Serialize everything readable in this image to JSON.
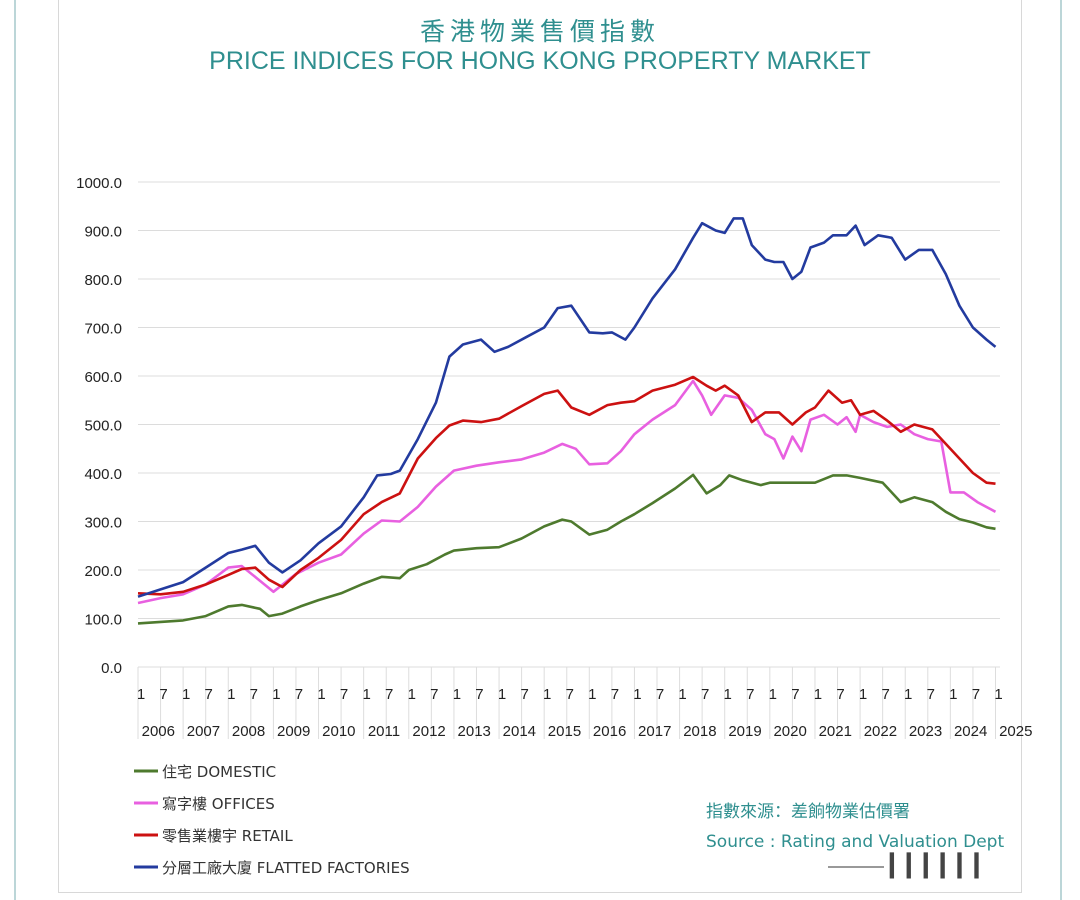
{
  "title_cn": "香港物業售價指數",
  "title_en": "PRICE INDICES FOR HONG KONG PROPERTY MARKET",
  "source": {
    "cn": "指數來源：差餉物業估價署",
    "en": "Source : Rating and Valuation Dept"
  },
  "watermark": "▎▎▎▎▎▎",
  "chart_data": {
    "type": "line",
    "title": "PRICE INDICES FOR HONG KONG PROPERTY MARKET",
    "ylim": [
      0,
      1000
    ],
    "yticks": [
      "0.0",
      "100.0",
      "200.0",
      "300.0",
      "400.0",
      "500.0",
      "600.0",
      "700.0",
      "800.0",
      "900.0",
      "1000.0"
    ],
    "xlim": [
      2006.0,
      2025.1
    ],
    "month_ticks": [
      "1",
      "7",
      "1",
      "7",
      "1",
      "7",
      "1",
      "7",
      "1",
      "7",
      "1",
      "7",
      "1",
      "7",
      "1",
      "7",
      "1",
      "7",
      "1",
      "7",
      "1",
      "7",
      "1",
      "7",
      "1",
      "7",
      "1",
      "7",
      "1",
      "7",
      "1",
      "7",
      "1",
      "7",
      "1",
      "7",
      "1",
      "7",
      "1"
    ],
    "year_labels": [
      "2006",
      "2007",
      "2008",
      "2009",
      "2010",
      "2011",
      "2012",
      "2013",
      "2014",
      "2015",
      "2016",
      "2017",
      "2018",
      "2019",
      "2020",
      "2021",
      "2022",
      "2023",
      "2024",
      "2025"
    ],
    "grid": true,
    "legend_position": "bottom-left",
    "series": [
      {
        "name": "住宅 DOMESTIC",
        "color": "#4e7a2e",
        "x": [
          2006.0,
          2006.5,
          2007.0,
          2007.5,
          2008.0,
          2008.3,
          2008.7,
          2008.9,
          2009.2,
          2009.6,
          2010.0,
          2010.5,
          2011.0,
          2011.4,
          2011.8,
          2012.0,
          2012.4,
          2012.8,
          2013.0,
          2013.5,
          2014.0,
          2014.5,
          2015.0,
          2015.4,
          2015.6,
          2016.0,
          2016.4,
          2016.7,
          2017.0,
          2017.4,
          2017.9,
          2018.3,
          2018.6,
          2018.9,
          2019.1,
          2019.4,
          2019.8,
          2020.0,
          2020.5,
          2021.0,
          2021.4,
          2021.7,
          2022.0,
          2022.5,
          2022.9,
          2023.2,
          2023.6,
          2023.9,
          2024.2,
          2024.5,
          2024.8,
          2025.0
        ],
        "values": [
          90,
          93,
          96,
          105,
          125,
          128,
          120,
          105,
          110,
          125,
          138,
          152,
          172,
          186,
          183,
          200,
          212,
          232,
          240,
          245,
          247,
          265,
          290,
          304,
          300,
          273,
          283,
          300,
          315,
          338,
          368,
          396,
          358,
          375,
          395,
          385,
          375,
          380,
          380,
          380,
          395,
          395,
          390,
          380,
          340,
          350,
          340,
          320,
          305,
          298,
          288,
          285
        ]
      },
      {
        "name": "寫字樓 OFFICES",
        "color": "#e860e0",
        "x": [
          2006.0,
          2006.5,
          2007.0,
          2007.5,
          2008.0,
          2008.3,
          2008.7,
          2009.0,
          2009.5,
          2010.0,
          2010.5,
          2011.0,
          2011.4,
          2011.8,
          2012.2,
          2012.6,
          2013.0,
          2013.5,
          2014.0,
          2014.5,
          2015.0,
          2015.4,
          2015.7,
          2016.0,
          2016.4,
          2016.7,
          2017.0,
          2017.4,
          2017.9,
          2018.3,
          2018.5,
          2018.7,
          2019.0,
          2019.3,
          2019.6,
          2019.9,
          2020.1,
          2020.3,
          2020.5,
          2020.7,
          2020.9,
          2021.2,
          2021.5,
          2021.7,
          2021.9,
          2022.0,
          2022.3,
          2022.6,
          2022.9,
          2023.2,
          2023.5,
          2023.8,
          2024.0,
          2024.3,
          2024.6,
          2024.9,
          2025.0
        ],
        "values": [
          132,
          142,
          150,
          170,
          205,
          208,
          178,
          155,
          192,
          215,
          232,
          275,
          302,
          300,
          330,
          372,
          405,
          415,
          422,
          428,
          442,
          460,
          450,
          418,
          420,
          445,
          480,
          510,
          540,
          590,
          560,
          520,
          560,
          555,
          530,
          480,
          470,
          430,
          475,
          445,
          510,
          520,
          500,
          515,
          485,
          520,
          505,
          495,
          500,
          480,
          470,
          465,
          360,
          360,
          340,
          325,
          320
        ]
      },
      {
        "name": "零售業樓宇 RETAIL",
        "color": "#cc1111",
        "x": [
          2006.0,
          2006.5,
          2007.0,
          2007.5,
          2008.0,
          2008.3,
          2008.6,
          2008.9,
          2009.2,
          2009.6,
          2010.0,
          2010.5,
          2011.0,
          2011.4,
          2011.8,
          2012.2,
          2012.6,
          2012.9,
          2013.2,
          2013.6,
          2014.0,
          2014.5,
          2015.0,
          2015.3,
          2015.6,
          2016.0,
          2016.4,
          2016.7,
          2017.0,
          2017.4,
          2017.9,
          2018.3,
          2018.6,
          2018.8,
          2019.0,
          2019.3,
          2019.6,
          2019.9,
          2020.2,
          2020.5,
          2020.8,
          2021.0,
          2021.3,
          2021.6,
          2021.8,
          2022.0,
          2022.3,
          2022.6,
          2022.9,
          2023.2,
          2023.6,
          2023.9,
          2024.2,
          2024.5,
          2024.8,
          2025.0
        ],
        "values": [
          152,
          150,
          155,
          170,
          190,
          202,
          205,
          180,
          165,
          200,
          225,
          262,
          315,
          340,
          358,
          430,
          472,
          498,
          508,
          505,
          512,
          538,
          563,
          570,
          535,
          520,
          540,
          545,
          548,
          570,
          582,
          598,
          580,
          570,
          580,
          560,
          505,
          525,
          525,
          500,
          525,
          535,
          570,
          545,
          550,
          520,
          528,
          508,
          485,
          500,
          490,
          460,
          430,
          400,
          380,
          378
        ]
      },
      {
        "name": "分層工廠大廈 FLATTED FACTORIES",
        "color": "#233b9f",
        "x": [
          2006.0,
          2006.5,
          2007.0,
          2007.5,
          2008.0,
          2008.3,
          2008.6,
          2008.9,
          2009.2,
          2009.6,
          2010.0,
          2010.5,
          2011.0,
          2011.3,
          2011.6,
          2011.8,
          2012.2,
          2012.6,
          2012.9,
          2013.2,
          2013.6,
          2013.9,
          2014.2,
          2014.6,
          2015.0,
          2015.3,
          2015.6,
          2016.0,
          2016.3,
          2016.5,
          2016.8,
          2017.0,
          2017.4,
          2017.9,
          2018.3,
          2018.5,
          2018.8,
          2019.0,
          2019.2,
          2019.4,
          2019.6,
          2019.9,
          2020.1,
          2020.3,
          2020.5,
          2020.7,
          2020.9,
          2021.2,
          2021.4,
          2021.7,
          2021.9,
          2022.1,
          2022.4,
          2022.7,
          2023.0,
          2023.3,
          2023.6,
          2023.9,
          2024.2,
          2024.5,
          2024.8,
          2025.0
        ],
        "values": [
          145,
          160,
          175,
          205,
          235,
          242,
          250,
          215,
          195,
          220,
          255,
          290,
          350,
          395,
          398,
          405,
          470,
          545,
          640,
          665,
          675,
          650,
          660,
          680,
          700,
          740,
          745,
          690,
          688,
          690,
          675,
          700,
          760,
          820,
          885,
          915,
          900,
          895,
          925,
          925,
          870,
          840,
          835,
          835,
          800,
          815,
          865,
          875,
          890,
          890,
          910,
          870,
          890,
          885,
          840,
          860,
          860,
          810,
          745,
          700,
          675,
          660
        ]
      }
    ]
  }
}
